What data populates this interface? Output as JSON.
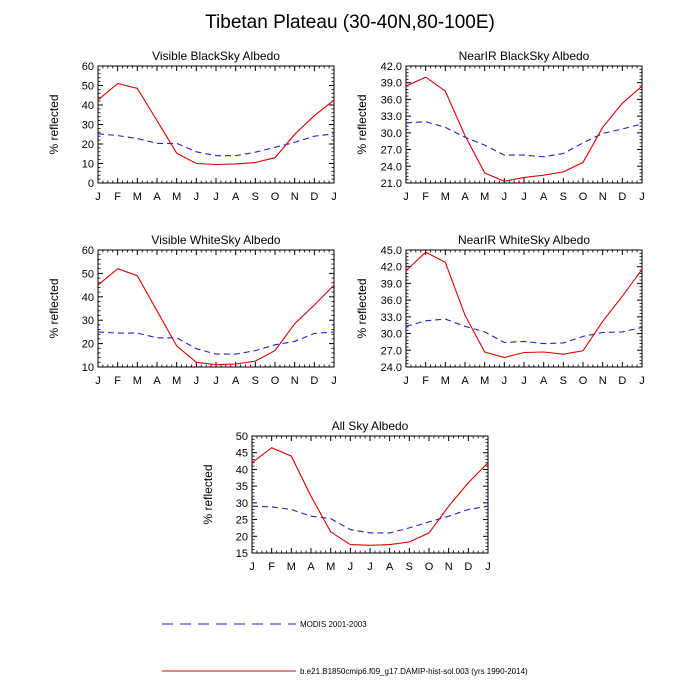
{
  "title": "Tibetan Plateau (30-40N,80-100E)",
  "colors": {
    "modis": "#2222cc",
    "model": "#dd0000"
  },
  "legend": {
    "modis_label": "MODIS 2001-2003",
    "model_label": "b.e21.B1850cmip6.f09_g17.DAMIP-hist-sol.003 (yrs 1990-2014)"
  },
  "chart_data": [
    {
      "type": "line",
      "title": "Visible BlackSky Albedo",
      "ylabel": "% reflected",
      "categories": [
        "J",
        "F",
        "M",
        "A",
        "M",
        "J",
        "J",
        "A",
        "S",
        "O",
        "N",
        "D",
        "J"
      ],
      "ylim": [
        0,
        60
      ],
      "yticks": [
        0,
        10,
        20,
        30,
        40,
        50,
        60
      ],
      "ytick_labels": [
        "0",
        "10",
        "20",
        "30",
        "40",
        "50",
        "60"
      ],
      "series": [
        {
          "name": "MODIS 2001-2003",
          "style": "dashed",
          "values": [
            25.3,
            24.3,
            22.8,
            20.3,
            20.3,
            16.0,
            14.0,
            14.0,
            15.8,
            18.3,
            20.8,
            24.0,
            25.3
          ]
        },
        {
          "name": "b.e21.B1850cmip6.f09_g17.DAMIP-hist-sol.003 (yrs 1990-2014)",
          "style": "solid",
          "values": [
            42.5,
            51.0,
            48.5,
            32.0,
            15.3,
            10.0,
            9.5,
            9.8,
            10.5,
            13.0,
            25.0,
            34.5,
            42.5
          ]
        }
      ]
    },
    {
      "type": "line",
      "title": "NearIR BlackSky Albedo",
      "ylabel": "% reflected",
      "categories": [
        "J",
        "F",
        "M",
        "A",
        "M",
        "J",
        "J",
        "A",
        "S",
        "O",
        "N",
        "D",
        "J"
      ],
      "ylim": [
        21,
        42
      ],
      "yticks": [
        21,
        24,
        27,
        30,
        33,
        36,
        39,
        42
      ],
      "ytick_labels": [
        "21.0",
        "24.0",
        "27.0",
        "30.0",
        "33.0",
        "36.0",
        "39.0",
        "42.0"
      ],
      "series": [
        {
          "name": "MODIS 2001-2003",
          "style": "dashed",
          "values": [
            31.8,
            32.0,
            31.0,
            29.2,
            27.8,
            26.0,
            26.0,
            25.7,
            26.3,
            28.2,
            29.9,
            30.7,
            31.6
          ]
        },
        {
          "name": "b.e21.B1850cmip6.f09_g17.DAMIP-hist-sol.003 (yrs 1990-2014)",
          "style": "solid",
          "values": [
            38.4,
            40.0,
            37.5,
            29.5,
            22.8,
            21.3,
            22.0,
            22.4,
            23.0,
            24.7,
            31.0,
            35.3,
            38.4
          ]
        }
      ]
    },
    {
      "type": "line",
      "title": "Visible WhiteSky Albedo",
      "ylabel": "% reflected",
      "categories": [
        "J",
        "F",
        "M",
        "A",
        "M",
        "J",
        "J",
        "A",
        "S",
        "O",
        "N",
        "D",
        "J"
      ],
      "ylim": [
        10,
        60
      ],
      "yticks": [
        10,
        20,
        30,
        40,
        50,
        60
      ],
      "ytick_labels": [
        "10",
        "20",
        "30",
        "40",
        "50",
        "60"
      ],
      "series": [
        {
          "name": "MODIS 2001-2003",
          "style": "dashed",
          "values": [
            25.0,
            24.5,
            24.5,
            22.5,
            22.5,
            17.8,
            15.5,
            15.5,
            17.0,
            19.5,
            21.0,
            24.3,
            25.0
          ]
        },
        {
          "name": "b.e21.B1850cmip6.f09_g17.DAMIP-hist-sol.003 (yrs 1990-2014)",
          "style": "solid",
          "values": [
            45.0,
            52.0,
            49.0,
            34.0,
            19.0,
            12.0,
            11.0,
            11.3,
            12.5,
            17.0,
            28.5,
            36.5,
            45.0
          ]
        }
      ]
    },
    {
      "type": "line",
      "title": "NearIR WhiteSky Albedo",
      "ylabel": "% reflected",
      "categories": [
        "J",
        "F",
        "M",
        "A",
        "M",
        "J",
        "J",
        "A",
        "S",
        "O",
        "N",
        "D",
        "J"
      ],
      "ylim": [
        24,
        45
      ],
      "yticks": [
        24,
        27,
        30,
        33,
        36,
        39,
        42,
        45
      ],
      "ytick_labels": [
        "24.0",
        "27.0",
        "30.0",
        "33.0",
        "36.0",
        "39.0",
        "42.0",
        "45.0"
      ],
      "series": [
        {
          "name": "MODIS 2001-2003",
          "style": "dashed",
          "values": [
            31.3,
            32.3,
            32.6,
            31.3,
            30.3,
            28.4,
            28.6,
            28.2,
            28.3,
            29.5,
            30.2,
            30.3,
            31.1
          ]
        },
        {
          "name": "b.e21.B1850cmip6.f09_g17.DAMIP-hist-sol.003 (yrs 1990-2014)",
          "style": "solid",
          "values": [
            41.3,
            44.6,
            42.8,
            33.3,
            26.7,
            25.7,
            26.6,
            26.7,
            26.3,
            26.9,
            32.2,
            36.7,
            41.5
          ]
        }
      ]
    },
    {
      "type": "line",
      "title": "All Sky Albedo",
      "ylabel": "% reflected",
      "categories": [
        "J",
        "F",
        "M",
        "A",
        "M",
        "J",
        "J",
        "A",
        "S",
        "O",
        "N",
        "D",
        "J"
      ],
      "ylim": [
        15,
        50
      ],
      "yticks": [
        15,
        20,
        25,
        30,
        35,
        40,
        45,
        50
      ],
      "ytick_labels": [
        "15",
        "20",
        "25",
        "30",
        "35",
        "40",
        "45",
        "50"
      ],
      "series": [
        {
          "name": "MODIS 2001-2003",
          "style": "dashed",
          "values": [
            29.0,
            28.8,
            28.0,
            26.0,
            25.3,
            22.0,
            21.0,
            21.0,
            22.5,
            24.3,
            26.0,
            28.0,
            29.0
          ]
        },
        {
          "name": "b.e21.B1850cmip6.f09_g17.DAMIP-hist-sol.003 (yrs 1990-2014)",
          "style": "solid",
          "values": [
            42.0,
            46.5,
            44.0,
            32.0,
            21.3,
            17.5,
            17.3,
            17.5,
            18.3,
            21.0,
            29.0,
            36.0,
            42.0
          ]
        }
      ]
    }
  ]
}
